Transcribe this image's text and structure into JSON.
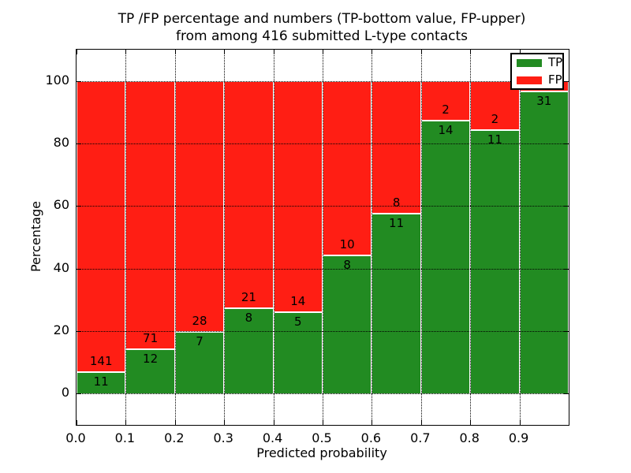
{
  "figure": {
    "title_line1": "TP /FP percentage and numbers (TP-bottom value, FP-upper)",
    "title_line2": "from among 416 submitted L-type contacts",
    "xlabel": "Predicted probability",
    "ylabel": "Percentage"
  },
  "legend": {
    "items": [
      {
        "label": "TP",
        "color": "#228b22"
      },
      {
        "label": "FP",
        "color": "#ff1e14"
      }
    ]
  },
  "chart_data": {
    "type": "bar",
    "subtype": "stacked-100-percent",
    "title": "TP /FP percentage and numbers (TP-bottom value, FP-upper)\nfrom among 416 submitted L-type contacts",
    "xlabel": "Predicted probability",
    "ylabel": "Percentage",
    "xlim": [
      0.0,
      1.0
    ],
    "ylim": [
      -10,
      110
    ],
    "grid": "dotted",
    "legend_position": "upper right",
    "x_tick_labels": [
      "0.0",
      "0.1",
      "0.2",
      "0.3",
      "0.4",
      "0.5",
      "0.6",
      "0.7",
      "0.8",
      "0.9"
    ],
    "y_tick_values": [
      0,
      20,
      40,
      60,
      80,
      100
    ],
    "bin_edges": [
      0.0,
      0.1,
      0.2,
      0.3,
      0.4,
      0.5,
      0.6,
      0.7,
      0.8,
      0.9,
      1.0
    ],
    "series": [
      {
        "name": "TP",
        "color": "#228b22",
        "counts": [
          11,
          12,
          7,
          8,
          5,
          8,
          11,
          14,
          11,
          31
        ]
      },
      {
        "name": "FP",
        "color": "#ff1e14",
        "counts": [
          141,
          71,
          28,
          21,
          14,
          10,
          8,
          2,
          2,
          1
        ]
      }
    ],
    "tp_percent_of_bin": [
      7.2,
      14.5,
      20.0,
      27.6,
      26.3,
      44.4,
      57.9,
      87.5,
      84.6,
      96.9
    ],
    "bar_value_labels": {
      "tp": [
        "11",
        "12",
        "7",
        "8",
        "5",
        "8",
        "11",
        "14",
        "11",
        "31"
      ],
      "fp": [
        "141",
        "71",
        "28",
        "21",
        "14",
        "10",
        "8",
        "2",
        "2",
        ""
      ]
    }
  }
}
